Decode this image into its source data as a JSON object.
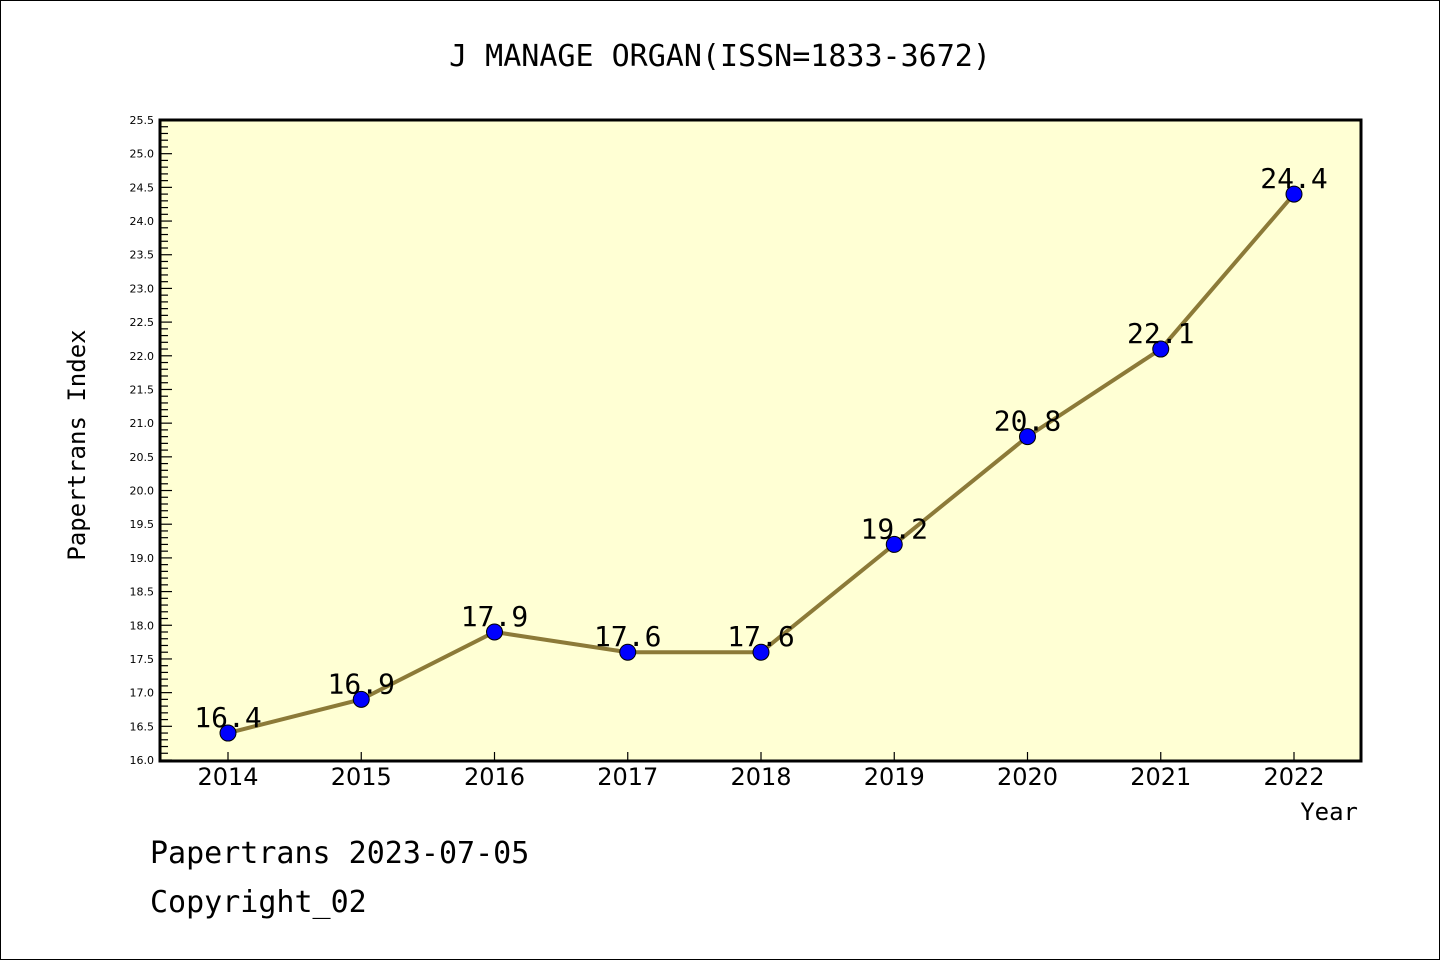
{
  "chart_data": {
    "type": "line",
    "title": "J MANAGE ORGAN(ISSN=1833-3672)",
    "xlabel": "Year",
    "ylabel": "Papertrans Index",
    "categories": [
      "2014",
      "2015",
      "2016",
      "2017",
      "2018",
      "2019",
      "2020",
      "2021",
      "2022"
    ],
    "values": [
      16.4,
      16.9,
      17.9,
      17.6,
      17.6,
      19.2,
      20.8,
      22.1,
      24.4
    ],
    "data_labels": [
      "16.4",
      "16.9",
      "17.9",
      "17.6",
      "17.6",
      "19.2",
      "20.8",
      "22.1",
      "24.4"
    ],
    "ylim": [
      16.0,
      25.5
    ],
    "ytick_step": 0.5,
    "yminor_step": 0.1,
    "grid": false,
    "colors": {
      "plot_bg": "#ffffd4",
      "line": "#8c7a38",
      "marker": "#0000ff"
    }
  },
  "footer": {
    "line1": "Papertrans 2023-07-05",
    "line2": "Copyright_02"
  }
}
